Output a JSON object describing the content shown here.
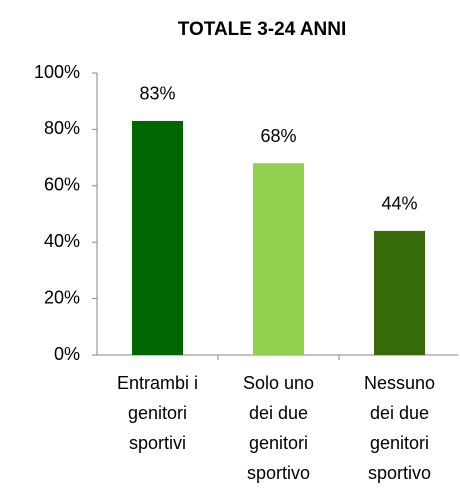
{
  "chart_data": {
    "type": "bar",
    "title": "TOTALE 3-24 ANNI",
    "categories": [
      [
        "Entrambi i",
        "genitori",
        "sportivi"
      ],
      [
        "Solo uno",
        "dei due",
        "genitori",
        "sportivo"
      ],
      [
        "Nessuno",
        "dei due",
        "genitori",
        "sportivo"
      ]
    ],
    "values": [
      83,
      68,
      44
    ],
    "value_labels": [
      "83%",
      "68%",
      "44%"
    ],
    "colors": [
      "#006600",
      "#92d050",
      "#376b0a"
    ],
    "ylim": [
      0,
      100
    ],
    "yticks": [
      {
        "value": 0,
        "label": "0%"
      },
      {
        "value": 20,
        "label": "20%"
      },
      {
        "value": 40,
        "label": "40%"
      },
      {
        "value": 60,
        "label": "60%"
      },
      {
        "value": 80,
        "label": "80%"
      },
      {
        "value": 100,
        "label": "100%"
      }
    ],
    "grid": false
  }
}
